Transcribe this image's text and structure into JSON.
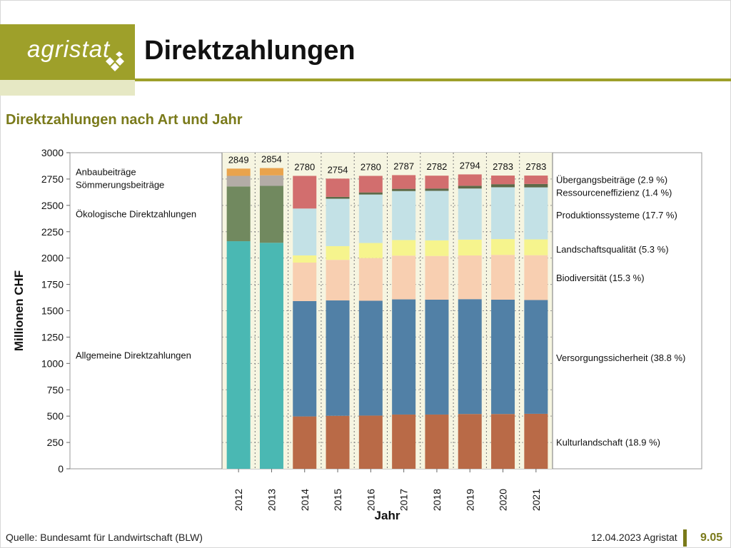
{
  "header": {
    "logo_text": "agristat",
    "title": "Direktzahlungen"
  },
  "subtitle": "Direktzahlungen nach Art und Jahr",
  "footer": {
    "source": "Quelle: Bundesamt für Landwirtschaft (BLW)",
    "date": "12.04.2023 Agristat",
    "page": "9.05"
  },
  "colors": {
    "brand": "#9ea02a",
    "brand_light": "#e6e8c4",
    "plot_bg": "#f6f5e1"
  },
  "chart_data": {
    "type": "bar",
    "stacked": true,
    "xlabel": "Jahr",
    "ylabel": "Millionen CHF",
    "ylim": [
      0,
      3000
    ],
    "yticks": [
      0,
      250,
      500,
      750,
      1000,
      1250,
      1500,
      1750,
      2000,
      2250,
      2500,
      2750,
      3000
    ],
    "grid": true,
    "categories": [
      "2012",
      "2013",
      "2014",
      "2015",
      "2016",
      "2017",
      "2018",
      "2019",
      "2020",
      "2021"
    ],
    "totals": [
      2849,
      2854,
      2780,
      2754,
      2780,
      2787,
      2782,
      2794,
      2783,
      2783
    ],
    "series": [
      {
        "name": "Allgemeine Direktzahlungen",
        "color": "#4ab8b3",
        "values": [
          2160,
          2145,
          0,
          0,
          0,
          0,
          0,
          0,
          0,
          0
        ]
      },
      {
        "name": "Ökologische Direktzahlungen",
        "color": "#71895f",
        "values": [
          520,
          540,
          0,
          0,
          0,
          0,
          0,
          0,
          0,
          0
        ]
      },
      {
        "name": "Sömmerungsbeiträge",
        "color": "#b3aca6",
        "values": [
          100,
          100,
          0,
          0,
          0,
          0,
          0,
          0,
          0,
          0
        ]
      },
      {
        "name": "Anbaubeiträge",
        "color": "#e9a34d",
        "values": [
          69,
          69,
          0,
          0,
          0,
          0,
          0,
          0,
          0,
          0
        ]
      },
      {
        "name": "Kulturlandschaft (18.9 %)",
        "color": "#b96a47",
        "values": [
          0,
          0,
          497,
          503,
          505,
          515,
          515,
          520,
          520,
          522
        ]
      },
      {
        "name": "Versorgungssicherheit (38.8 %)",
        "color": "#5180a6",
        "values": [
          0,
          0,
          1095,
          1095,
          1090,
          1093,
          1090,
          1090,
          1085,
          1080
        ]
      },
      {
        "name": "Biodiversität (15.3 %)",
        "color": "#f8cfb1",
        "values": [
          0,
          0,
          365,
          385,
          405,
          415,
          415,
          415,
          425,
          425
        ]
      },
      {
        "name": "Landschaftsqualität (5.3 %)",
        "color": "#f6f48d",
        "values": [
          0,
          0,
          68,
          130,
          143,
          148,
          148,
          150,
          150,
          150
        ]
      },
      {
        "name": "Produktionssysteme (17.7 %)",
        "color": "#c3e1e6",
        "values": [
          0,
          0,
          445,
          450,
          460,
          465,
          470,
          485,
          492,
          494
        ]
      },
      {
        "name": "Ressourceneffizienz (1.4 %)",
        "color": "#5d6a48",
        "values": [
          0,
          0,
          0,
          18,
          20,
          21,
          22,
          26,
          29,
          32
        ]
      },
      {
        "name": "Übergangsbeiträge (2.9 %)",
        "color": "#d26e6e",
        "values": [
          0,
          0,
          310,
          173,
          157,
          130,
          122,
          108,
          82,
          80
        ]
      }
    ],
    "left_labels": [
      {
        "text": "Anbaubeiträge",
        "y": 2820
      },
      {
        "text": "Sömmerungsbeiträge",
        "y": 2700
      },
      {
        "text": "Ökologische Direktzahlungen",
        "y": 2420
      },
      {
        "text": "Allgemeine Direktzahlungen",
        "y": 1080
      }
    ],
    "right_labels": [
      {
        "text": "Übergangsbeiträge (2.9 %)",
        "y": 2745
      },
      {
        "text": "Ressourceneffizienz (1.4 %)",
        "y": 2625
      },
      {
        "text": "Produktionssysteme (17.7 %)",
        "y": 2410
      },
      {
        "text": "Landschaftsqualität (5.3 %)",
        "y": 2085
      },
      {
        "text": "Biodiversität (15.3 %)",
        "y": 1815
      },
      {
        "text": "Versorgungssicherheit (38.8 %)",
        "y": 1055
      },
      {
        "text": "Kulturlandschaft (18.9 %)",
        "y": 255
      }
    ]
  }
}
